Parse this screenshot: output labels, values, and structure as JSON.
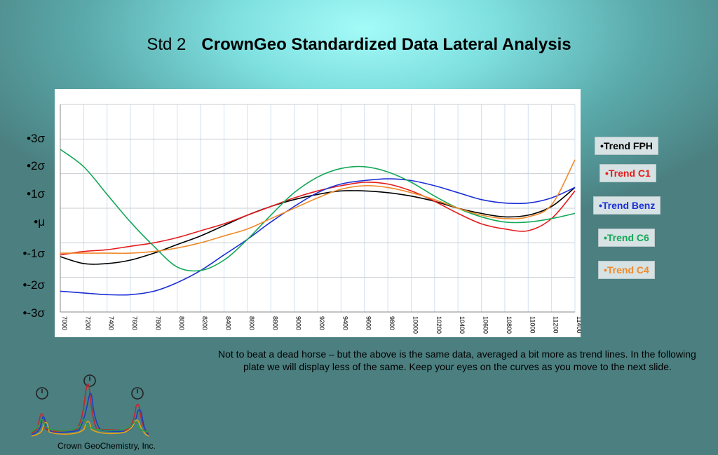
{
  "title": {
    "prefix": "Std 2",
    "main": "CrownGeo Standardized Data Lateral Analysis"
  },
  "y_axis_labels": [
    "•3σ",
    "•2σ",
    "•1σ",
    "•μ",
    "•-1σ",
    "•-2σ",
    "•-3σ"
  ],
  "legend": [
    {
      "label": "•Trend FPH",
      "color": "#000000"
    },
    {
      "label": "•Trend C1",
      "color": "#e51b1b"
    },
    {
      "label": "•Trend Benz",
      "color": "#1b2fd6"
    },
    {
      "label": "•Trend C6",
      "color": "#14a858"
    },
    {
      "label": "•Trend C4",
      "color": "#f08a2a"
    }
  ],
  "chart_data": {
    "type": "line",
    "xlim": [
      7000,
      11400
    ],
    "ylim": [
      -3,
      3
    ],
    "x_ticks": [
      "7000",
      "7200",
      "7400",
      "7600",
      "7800",
      "8000",
      "8200",
      "8400",
      "8600",
      "8800",
      "9000",
      "9200",
      "9400",
      "9600",
      "9800",
      "10000",
      "10200",
      "10400",
      "10600",
      "10800",
      "11000",
      "11200",
      "11400"
    ],
    "y_ticks": [
      3,
      2,
      1,
      0,
      -1,
      -2,
      -3
    ],
    "y_tick_labels": [
      "•3σ",
      "•2σ",
      "•1σ",
      "•μ",
      "•-1σ",
      "•-2σ",
      "•-3σ"
    ],
    "grid": true,
    "x": [
      7000,
      7200,
      7400,
      7600,
      7800,
      8000,
      8200,
      8400,
      8600,
      8800,
      9000,
      9200,
      9400,
      9600,
      9800,
      10000,
      10200,
      10400,
      10600,
      10800,
      11000,
      11200,
      11400
    ],
    "series": [
      {
        "name": "Trend FPH",
        "color": "#000000",
        "values": [
          -1.4,
          -1.6,
          -1.6,
          -1.5,
          -1.3,
          -1.05,
          -0.8,
          -0.5,
          -0.2,
          0.05,
          0.25,
          0.4,
          0.5,
          0.5,
          0.45,
          0.35,
          0.2,
          0.0,
          -0.15,
          -0.25,
          -0.2,
          0.05,
          0.6
        ]
      },
      {
        "name": "Trend C1",
        "color": "#e51b1b",
        "values": [
          -1.35,
          -1.25,
          -1.2,
          -1.1,
          -1.0,
          -0.85,
          -0.65,
          -0.45,
          -0.2,
          0.05,
          0.3,
          0.5,
          0.65,
          0.75,
          0.7,
          0.5,
          0.2,
          -0.15,
          -0.45,
          -0.6,
          -0.65,
          -0.3,
          0.5
        ]
      },
      {
        "name": "Trend Benz",
        "color": "#1b2fd6",
        "values": [
          -2.4,
          -2.45,
          -2.5,
          -2.5,
          -2.4,
          -2.15,
          -1.8,
          -1.35,
          -0.9,
          -0.4,
          0.05,
          0.45,
          0.7,
          0.8,
          0.85,
          0.8,
          0.65,
          0.45,
          0.25,
          0.15,
          0.15,
          0.3,
          0.6
        ]
      },
      {
        "name": "Trend C6",
        "color": "#14a858",
        "values": [
          1.7,
          1.2,
          0.4,
          -0.4,
          -1.1,
          -1.7,
          -1.8,
          -1.5,
          -0.9,
          -0.2,
          0.45,
          0.9,
          1.15,
          1.2,
          1.05,
          0.75,
          0.35,
          0.0,
          -0.25,
          -0.4,
          -0.4,
          -0.3,
          -0.15
        ]
      },
      {
        "name": "Trend C4",
        "color": "#f08a2a",
        "values": [
          -1.3,
          -1.3,
          -1.3,
          -1.3,
          -1.25,
          -1.15,
          -1.0,
          -0.8,
          -0.6,
          -0.3,
          0.0,
          0.3,
          0.55,
          0.65,
          0.6,
          0.45,
          0.25,
          0.0,
          -0.2,
          -0.3,
          -0.25,
          0.1,
          1.4
        ]
      }
    ]
  },
  "note": {
    "text": "Not to beat a dead horse – but the above is the same data, averaged a bit more as trend lines. In the following plate we will display less of the same. Keep your eyes on the curves as you move to the next slide."
  },
  "logo": {
    "company": "Crown GeoChemistry, Inc."
  }
}
